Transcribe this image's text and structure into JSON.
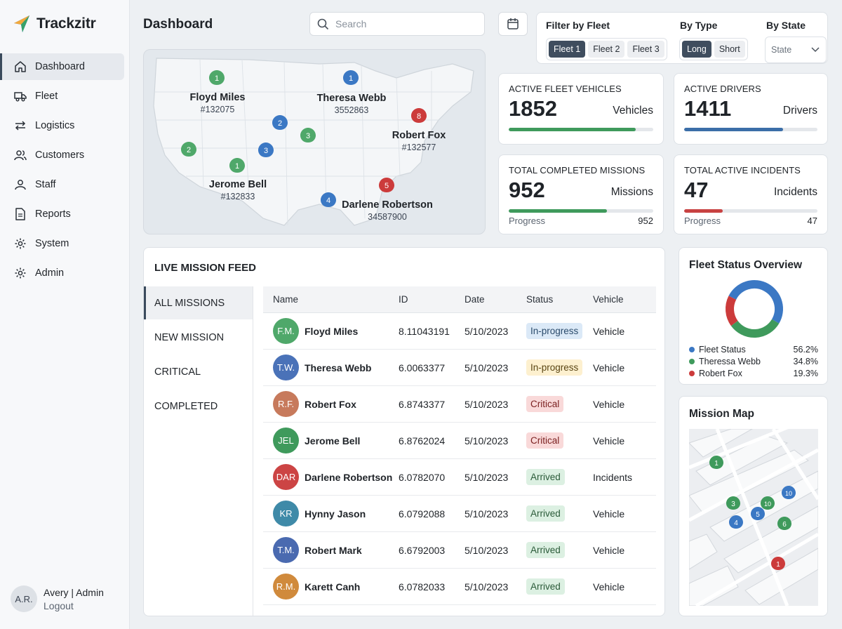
{
  "app": {
    "name": "Trackzitr"
  },
  "nav": {
    "items": [
      {
        "label": "Dashboard",
        "icon": "home-icon",
        "active": true
      },
      {
        "label": "Fleet",
        "icon": "truck-icon"
      },
      {
        "label": "Logistics",
        "icon": "swap-icon"
      },
      {
        "label": "Customers",
        "icon": "users-icon"
      },
      {
        "label": "Staff",
        "icon": "user-icon"
      },
      {
        "label": "Reports",
        "icon": "document-icon"
      },
      {
        "label": "System",
        "icon": "gear-icon"
      },
      {
        "label": "Admin",
        "icon": "gear-icon"
      }
    ]
  },
  "user": {
    "initials": "A.R.",
    "name": "Avery | Admin",
    "logout": "Logout"
  },
  "header": {
    "title": "Dashboard",
    "search_placeholder": "Search"
  },
  "filters": {
    "fleet": {
      "label": "Filter by Fleet",
      "options": [
        "Fleet 1",
        "Fleet 2",
        "Fleet 3"
      ],
      "selected": "Fleet 1"
    },
    "type": {
      "label": "By Type",
      "options": [
        "Long",
        "Short"
      ],
      "selected": "Long"
    },
    "state": {
      "label": "By State",
      "value": "State"
    }
  },
  "map": {
    "labels": [
      {
        "name": "Floyd Miles",
        "code": "#132075"
      },
      {
        "name": "Theresa Webb",
        "code": "3552863"
      },
      {
        "name": "Robert Fox",
        "code": "#132577"
      },
      {
        "name": "Jerome Bell",
        "code": "#132833"
      },
      {
        "name": "Darlene Robertson",
        "code": "34587900"
      }
    ],
    "pins": [
      "1",
      "1",
      "8",
      "2",
      "3",
      "2",
      "3",
      "1",
      "5",
      "4"
    ]
  },
  "stats": {
    "vehicles": {
      "title": "ACTIVE FLEET VEHICLES",
      "value": "1852",
      "unit": "Vehicles",
      "progress": 0.88,
      "color": "#3f9a5c"
    },
    "drivers": {
      "title": "ACTIVE DRIVERS",
      "value": "1411",
      "unit": "Drivers",
      "progress": 0.74,
      "color": "#3b6ea8"
    },
    "missions": {
      "title": "TOTAL COMPLETED MISSIONS",
      "value": "952",
      "unit": "Missions",
      "progress": 0.68,
      "color": "#3f9a5c",
      "progress_label": "Progress",
      "progress_value": "952"
    },
    "incidents": {
      "title": "TOTAL ACTIVE INCIDENTS",
      "value": "47",
      "unit": "Incidents",
      "progress": 0.29,
      "color": "#c84242",
      "progress_label": "Progress",
      "progress_value": "47"
    }
  },
  "feed": {
    "title": "LIVE MISSION FEED",
    "tabs": [
      "ALL MISSIONS",
      "NEW MISSION",
      "CRITICAL",
      "COMPLETED"
    ],
    "columns": [
      "Name",
      "ID",
      "Date",
      "Status",
      "Vehicle"
    ],
    "rows": [
      {
        "initials": "F.M.",
        "name": "Floyd Miles",
        "id": "8.11043191",
        "date": "5/10/2023",
        "status": "In-progress",
        "vehicle": "Vehicle",
        "avatar_color": "#4fa86a",
        "badge": "b-prog"
      },
      {
        "initials": "T.W.",
        "name": "Theresa Webb",
        "id": "6.0063377",
        "date": "5/10/2023",
        "status": "In-progress",
        "vehicle": "Vehicle",
        "avatar_color": "#4a72b8",
        "badge": "b-prog2"
      },
      {
        "initials": "R.F.",
        "name": "Robert Fox",
        "id": "6.8743377",
        "date": "5/10/2023",
        "status": "Critical",
        "vehicle": "Vehicle",
        "avatar_color": "#c77a5c",
        "badge": "b-crit"
      },
      {
        "initials": "JEL",
        "name": "Jerome Bell",
        "id": "6.8762024",
        "date": "5/10/2023",
        "status": "Critical",
        "vehicle": "Vehicle",
        "avatar_color": "#3f9a5c",
        "badge": "b-crit"
      },
      {
        "initials": "DAR",
        "name": "Darlene Robertson",
        "id": "6.0782070",
        "date": "5/10/2023",
        "status": "Arrived",
        "vehicle": "Incidents",
        "avatar_color": "#cc4444",
        "badge": "b-arr"
      },
      {
        "initials": "KR",
        "name": "Hynny Jason",
        "id": "6.0792088",
        "date": "5/10/2023",
        "status": "Arrived",
        "vehicle": "Vehicle",
        "avatar_color": "#3f8aa8",
        "badge": "b-arr"
      },
      {
        "initials": "T.M.",
        "name": "Robert Mark",
        "id": "6.6792003",
        "date": "5/10/2023",
        "status": "Arrived",
        "vehicle": "Vehicle",
        "avatar_color": "#4a6ab0",
        "badge": "b-arr"
      },
      {
        "initials": "R.M.",
        "name": "Karett Canh",
        "id": "6.0782033",
        "date": "5/10/2023",
        "status": "Arrived",
        "vehicle": "Vehicle",
        "avatar_color": "#d08a3c",
        "badge": "b-arr"
      }
    ]
  },
  "overview": {
    "title": "Fleet Status Overview",
    "items": [
      {
        "name": "Fleet Status",
        "value": "56.2%",
        "share": 56.2,
        "color": "#3b78c4"
      },
      {
        "name": "Theressa Webb",
        "value": "34.8%",
        "share": 34.8,
        "color": "#3f9a5c"
      },
      {
        "name": "Robert Fox",
        "value": "19.3%",
        "share": 19.3,
        "color": "#cc3b3b"
      }
    ]
  },
  "mission_map": {
    "title": "Mission Map",
    "pins": [
      "1",
      "3",
      "4",
      "10",
      "5",
      "10",
      "6",
      "1"
    ]
  }
}
